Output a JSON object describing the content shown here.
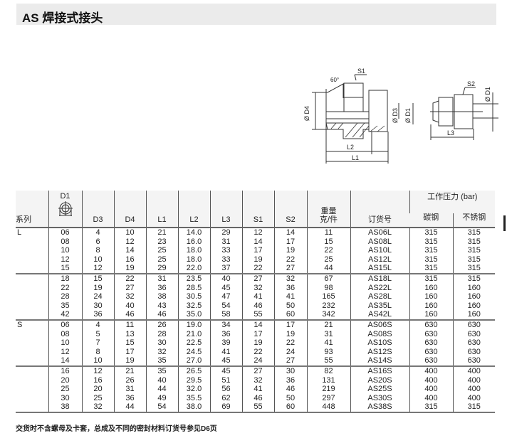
{
  "title": "AS 焊接式接头",
  "drawing": {
    "labels": {
      "s1": "S1",
      "s2": "S2",
      "angle": "60°",
      "d4": "Ø D4",
      "d3": "Ø D3",
      "d1": "Ø D1",
      "d1b": "Ø D1",
      "l1": "L1",
      "l2": "L2",
      "l3": "L3"
    }
  },
  "table": {
    "headers": {
      "series": "系列",
      "d1": "D1",
      "d3": "D3",
      "d4": "D4",
      "l1": "L1",
      "l2": "L2",
      "l3": "L3",
      "s1": "S1",
      "s2": "S2",
      "weight_top": "重量",
      "weight_bottom": "克/件",
      "order": "订货号",
      "pressure": "工作压力 (bar)",
      "carbon": "碳钢",
      "stainless": "不锈钢"
    },
    "groups": [
      {
        "series": "L",
        "rows": [
          [
            "06",
            "4",
            "10",
            "21",
            "14.0",
            "29",
            "12",
            "14",
            "11",
            "AS06L",
            "315",
            "315"
          ],
          [
            "08",
            "6",
            "12",
            "23",
            "16.0",
            "31",
            "14",
            "17",
            "15",
            "AS08L",
            "315",
            "315"
          ],
          [
            "10",
            "8",
            "14",
            "25",
            "18.0",
            "33",
            "17",
            "19",
            "22",
            "AS10L",
            "315",
            "315"
          ],
          [
            "12",
            "10",
            "16",
            "25",
            "18.0",
            "33",
            "19",
            "22",
            "25",
            "AS12L",
            "315",
            "315"
          ],
          [
            "15",
            "12",
            "19",
            "29",
            "22.0",
            "37",
            "22",
            "27",
            "44",
            "AS15L",
            "315",
            "315"
          ]
        ]
      },
      {
        "series": "",
        "rows": [
          [
            "18",
            "15",
            "22",
            "31",
            "23.5",
            "40",
            "27",
            "32",
            "67",
            "AS18L",
            "315",
            "315"
          ],
          [
            "22",
            "19",
            "27",
            "36",
            "28.5",
            "45",
            "32",
            "36",
            "98",
            "AS22L",
            "160",
            "160"
          ],
          [
            "28",
            "24",
            "32",
            "38",
            "30.5",
            "47",
            "41",
            "41",
            "165",
            "AS28L",
            "160",
            "160"
          ],
          [
            "35",
            "30",
            "40",
            "43",
            "32.5",
            "54",
            "46",
            "50",
            "232",
            "AS35L",
            "160",
            "160"
          ],
          [
            "42",
            "36",
            "46",
            "46",
            "35.0",
            "58",
            "55",
            "60",
            "342",
            "AS42L",
            "160",
            "160"
          ]
        ]
      },
      {
        "series": "S",
        "rows": [
          [
            "06",
            "4",
            "11",
            "26",
            "19.0",
            "34",
            "14",
            "17",
            "21",
            "AS06S",
            "630",
            "630"
          ],
          [
            "08",
            "5",
            "13",
            "28",
            "21.0",
            "36",
            "17",
            "19",
            "31",
            "AS08S",
            "630",
            "630"
          ],
          [
            "10",
            "7",
            "15",
            "30",
            "22.5",
            "39",
            "19",
            "22",
            "41",
            "AS10S",
            "630",
            "630"
          ],
          [
            "12",
            "8",
            "17",
            "32",
            "24.5",
            "41",
            "22",
            "24",
            "93",
            "AS12S",
            "630",
            "630"
          ],
          [
            "14",
            "10",
            "19",
            "35",
            "27.0",
            "45",
            "24",
            "27",
            "55",
            "AS14S",
            "630",
            "630"
          ]
        ]
      },
      {
        "series": "",
        "rows": [
          [
            "16",
            "12",
            "21",
            "35",
            "26.5",
            "45",
            "27",
            "30",
            "82",
            "AS16S",
            "400",
            "400"
          ],
          [
            "20",
            "16",
            "26",
            "40",
            "29.5",
            "51",
            "32",
            "36",
            "131",
            "AS20S",
            "400",
            "400"
          ],
          [
            "25",
            "20",
            "31",
            "44",
            "32.0",
            "56",
            "41",
            "46",
            "219",
            "AS25S",
            "400",
            "400"
          ],
          [
            "30",
            "25",
            "36",
            "49",
            "35.5",
            "62",
            "46",
            "50",
            "297",
            "AS30S",
            "400",
            "400"
          ],
          [
            "38",
            "32",
            "44",
            "54",
            "38.0",
            "69",
            "55",
            "60",
            "448",
            "AS38S",
            "315",
            "315"
          ]
        ]
      }
    ]
  },
  "footer": "交货时不含螺母及卡套，总成及不同的密封材料订货号参见D6页"
}
